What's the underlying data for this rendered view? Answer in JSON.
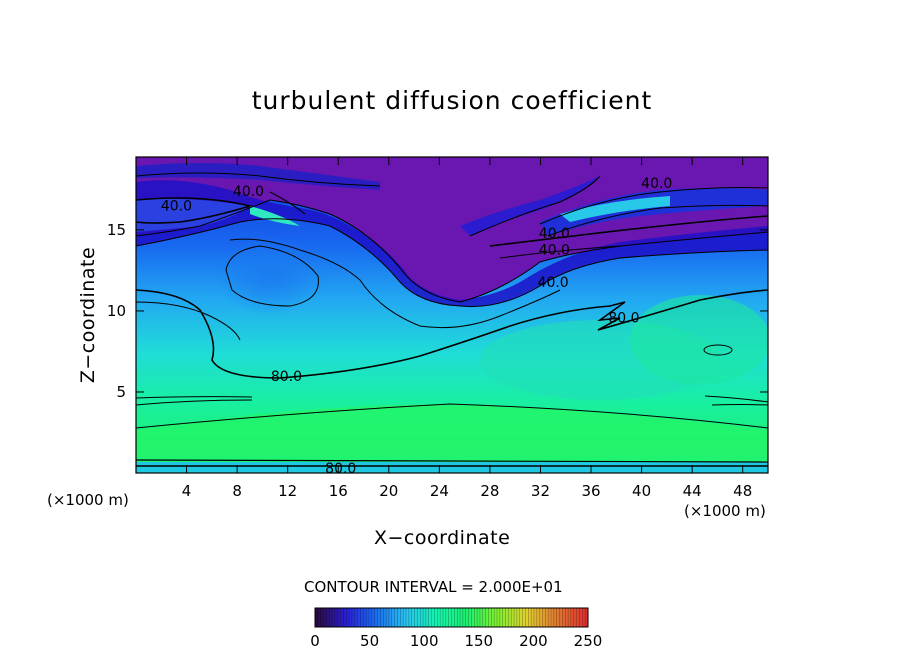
{
  "chart_data": {
    "type": "heatmap",
    "title": "turbulent diffusion coefficient",
    "xlabel": "X−coordinate",
    "ylabel": "Z−coordinate",
    "x_unit_left": "(×1000 m)",
    "x_unit_right": "(×1000 m)",
    "xlim": [
      0,
      50
    ],
    "ylim": [
      0,
      19.5
    ],
    "x_ticks": [
      "4",
      "8",
      "12",
      "16",
      "20",
      "24",
      "28",
      "32",
      "36",
      "40",
      "44",
      "48"
    ],
    "y_ticks": [
      "5",
      "10",
      "15"
    ],
    "contour_interval_text": "CONTOUR INTERVAL = 2.000E+01",
    "colorbar": {
      "min": 0,
      "max": 250,
      "tick_labels": [
        "0",
        "50",
        "100",
        "150",
        "200",
        "250"
      ],
      "colors": [
        "#2b0b3f",
        "#2a1fd6",
        "#1b6ff0",
        "#29c4f0",
        "#14f5b0",
        "#1cf070",
        "#7ef030",
        "#e0d030",
        "#e07a30",
        "#e03030"
      ]
    },
    "contour_labels": [
      {
        "text": "40.0",
        "x": 8.9,
        "z": 17.4
      },
      {
        "text": "40.0",
        "x": 3.2,
        "z": 16.5
      },
      {
        "text": "40.0",
        "x": 41.2,
        "z": 17.9
      },
      {
        "text": "40.0",
        "x": 33.1,
        "z": 14.8
      },
      {
        "text": "40.0",
        "x": 33.1,
        "z": 13.8
      },
      {
        "text": "40.0",
        "x": 33.0,
        "z": 11.8
      },
      {
        "text": "80.0",
        "x": 38.6,
        "z": 9.6
      },
      {
        "text": "80.0",
        "x": 11.9,
        "z": 6.0
      },
      {
        "text": "80.0",
        "x": 16.2,
        "z": 0.3
      }
    ]
  }
}
